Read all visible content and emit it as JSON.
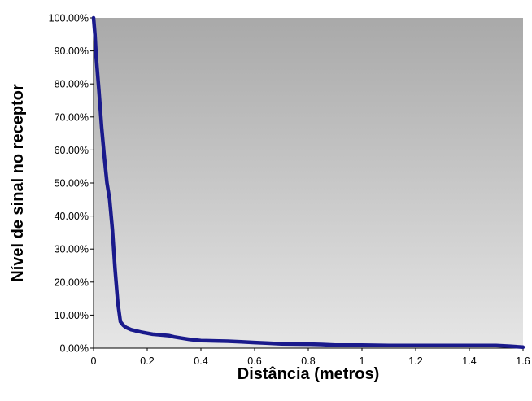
{
  "chart_data": {
    "type": "line",
    "title": "",
    "xlabel": "Distância (metros)",
    "ylabel": "Nível de sinal no receptor",
    "xlim": [
      0,
      1.6
    ],
    "ylim": [
      0,
      100
    ],
    "x_ticks": [
      "0",
      "0.2",
      "0.4",
      "0.6",
      "0.8",
      "1",
      "1.2",
      "1.4",
      "1.6"
    ],
    "y_ticks": [
      "0.00%",
      "10.00%",
      "20.00%",
      "30.00%",
      "40.00%",
      "50.00%",
      "60.00%",
      "70.00%",
      "80.00%",
      "90.00%",
      "100.00%"
    ],
    "grid": false,
    "legend": "none",
    "background": "gray-gradient",
    "colors": {
      "line": "#1a1a8c",
      "plot_top": "#a9a9a9",
      "plot_bottom": "#e6e6e6"
    },
    "series": [
      {
        "x": [
          0,
          0.005,
          0.01,
          0.02,
          0.03,
          0.04,
          0.05,
          0.06,
          0.07,
          0.08,
          0.09,
          0.1,
          0.11,
          0.12,
          0.14,
          0.16,
          0.18,
          0.2,
          0.22,
          0.25,
          0.28,
          0.3,
          0.33,
          0.36,
          0.4,
          0.45,
          0.5,
          0.55,
          0.6,
          0.65,
          0.7,
          0.8,
          0.85,
          0.9,
          1.0,
          1.1,
          1.2,
          1.3,
          1.4,
          1.5,
          1.55,
          1.6
        ],
        "values": [
          100,
          95,
          88,
          78,
          67,
          58,
          50,
          45,
          36,
          24,
          14,
          8,
          7,
          6.3,
          5.6,
          5.2,
          4.8,
          4.5,
          4.2,
          4.0,
          3.8,
          3.4,
          3.0,
          2.6,
          2.3,
          2.2,
          2.1,
          1.9,
          1.7,
          1.5,
          1.3,
          1.2,
          1.1,
          0.9,
          0.9,
          0.8,
          0.8,
          0.8,
          0.8,
          0.8,
          0.6,
          0.3
        ]
      }
    ]
  }
}
